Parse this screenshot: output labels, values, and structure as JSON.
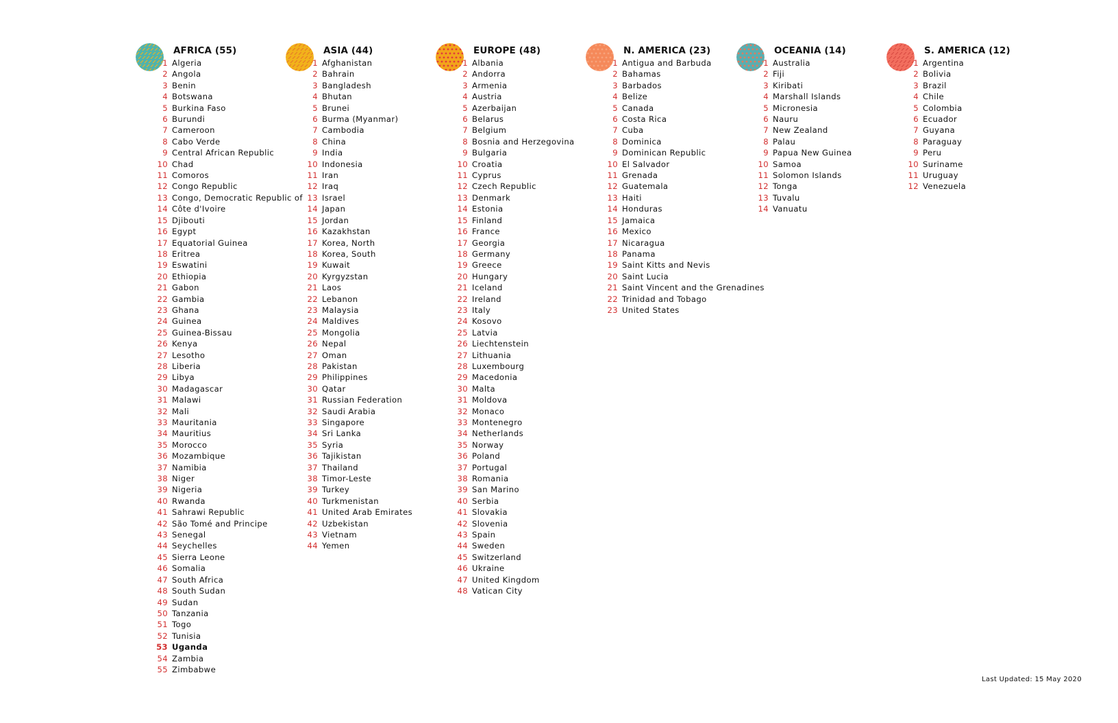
{
  "continents": [
    {
      "key": "africa",
      "title": "AFRICA (55)",
      "badge_color": "#4fb3ad",
      "badge_pattern": "dashes",
      "badge_accent": "#f2b21b",
      "countries": [
        "Algeria",
        "Angola",
        "Benin",
        "Botswana",
        "Burkina Faso",
        "Burundi",
        "Cameroon",
        "Cabo Verde",
        "Central African Republic",
        "Chad",
        "Comoros",
        "Congo Republic",
        "Congo, Democratic Republic of",
        "Côte d'Ivoire",
        "Djibouti",
        "Egypt",
        "Equatorial Guinea",
        "Eritrea",
        "Eswatini",
        "Ethiopia",
        "Gabon",
        "Gambia",
        "Ghana",
        "Guinea",
        "Guinea-Bissau",
        "Kenya",
        "Lesotho",
        "Liberia",
        "Libya",
        "Madagascar",
        "Malawi",
        "Mali",
        "Mauritania",
        "Mauritius",
        "Morocco",
        "Mozambique",
        "Namibia",
        "Niger",
        "Nigeria",
        "Rwanda",
        "Sahrawi Republic",
        "São Tomé and Principe",
        "Senegal",
        "Seychelles",
        "Sierra Leone",
        "Somalia",
        "South Africa",
        "South Sudan",
        "Sudan",
        "Tanzania",
        "Togo",
        "Tunisia",
        "Uganda",
        "Zambia",
        "Zimbabwe"
      ]
    },
    {
      "key": "asia",
      "title": "ASIA (44)",
      "badge_color": "#f2b21b",
      "badge_pattern": "dashes",
      "badge_accent": "#e8782a",
      "countries": [
        "Afghanistan",
        "Bahrain",
        "Bangladesh",
        "Bhutan",
        "Brunei",
        "Burma (Myanmar)",
        "Cambodia",
        "China",
        "India",
        "Indonesia",
        "Iran",
        "Iraq",
        "Israel",
        "Japan",
        "Jordan",
        "Kazakhstan",
        "Korea, North",
        "Korea, South",
        "Kuwait",
        "Kyrgyzstan",
        "Laos",
        "Lebanon",
        "Malaysia",
        "Maldives",
        "Mongolia",
        "Nepal",
        "Oman",
        "Pakistan",
        "Philippines",
        "Qatar",
        "Russian Federation",
        "Saudi Arabia",
        "Singapore",
        "Sri Lanka",
        "Syria",
        "Tajikistan",
        "Thailand",
        "Timor-Leste",
        "Turkey",
        "Turkmenistan",
        "United Arab Emirates",
        "Uzbekistan",
        "Vietnam",
        "Yemen"
      ]
    },
    {
      "key": "europe",
      "title": "EUROPE (48)",
      "badge_color": "#f2a41b",
      "badge_pattern": "dots",
      "badge_accent": "#e23b3b",
      "countries": [
        "Albania",
        "Andorra",
        "Armenia",
        "Austria",
        "Azerbaijan",
        "Belarus",
        "Belgium",
        "Bosnia and Herzegovina",
        "Bulgaria",
        "Croatia",
        "Cyprus",
        "Czech Republic",
        "Denmark",
        "Estonia",
        "Finland",
        "France",
        "Georgia",
        "Germany",
        "Greece",
        "Hungary",
        "Iceland",
        "Ireland",
        "Italy",
        "Kosovo",
        "Latvia",
        "Liechtenstein",
        "Lithuania",
        "Luxembourg",
        "Macedonia",
        "Malta",
        "Moldova",
        "Monaco",
        "Montenegro",
        "Netherlands",
        "Norway",
        "Poland",
        "Portugal",
        "Romania",
        "San Marino",
        "Serbia",
        "Slovakia",
        "Slovenia",
        "Spain",
        "Sweden",
        "Switzerland",
        "Ukraine",
        "United Kingdom",
        "Vatican City"
      ]
    },
    {
      "key": "n-america",
      "title": "N. AMERICA (23)",
      "badge_color": "#f5895a",
      "badge_pattern": "dots",
      "badge_accent": "#f7a37c",
      "countries": [
        "Antigua and Barbuda",
        "Bahamas",
        "Barbados",
        "Belize",
        "Canada",
        "Costa Rica",
        "Cuba",
        "Dominica",
        "Dominican Republic",
        "El Salvador",
        "Grenada",
        "Guatemala",
        "Haiti",
        "Honduras",
        "Jamaica",
        "Mexico",
        "Nicaragua",
        "Panama",
        "Saint Kitts and Nevis",
        "Saint Lucia",
        "Saint Vincent and the Grenadines",
        "Trinidad and Tobago",
        "United States"
      ]
    },
    {
      "key": "oceania",
      "title": "OCEANIA (14)",
      "badge_color": "#5aaeb0",
      "badge_pattern": "dots",
      "badge_accent": "#e8785a",
      "countries": [
        "Australia",
        "Fiji",
        "Kiribati",
        "Marshall Islands",
        "Micronesia",
        "Nauru",
        "New Zealand",
        "Palau",
        "Papua New Guinea",
        "Samoa",
        "Solomon Islands",
        "Tonga",
        "Tuvalu",
        "Vanuatu"
      ]
    },
    {
      "key": "s-america",
      "title": "S. AMERICA (12)",
      "badge_color": "#f26e5e",
      "badge_pattern": "dashes",
      "badge_accent": "#d94a42",
      "countries": [
        "Argentina",
        "Bolivia",
        "Brazil",
        "Chile",
        "Colombia",
        "Ecuador",
        "Guyana",
        "Paraguay",
        "Peru",
        "Suriname",
        "Uruguay",
        "Venezuela"
      ]
    }
  ],
  "highlighted_country": "Uganda",
  "number_color": "#d32f2f",
  "footer": {
    "last_updated": "Last Updated:  15 May 2020"
  }
}
